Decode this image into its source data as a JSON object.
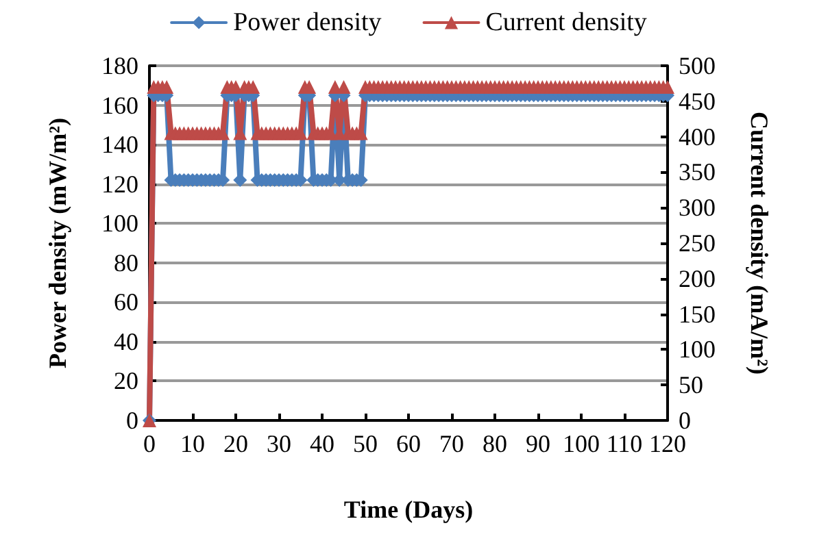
{
  "chart_data": {
    "type": "line",
    "xlabel": "Time (Days)",
    "ylabel": "Power density (mW/m²)",
    "y2label": "Current density (mA/m²)",
    "x": [
      0,
      1,
      2,
      3,
      4,
      5,
      6,
      7,
      8,
      9,
      10,
      11,
      12,
      13,
      14,
      15,
      16,
      17,
      18,
      19,
      20,
      21,
      22,
      23,
      24,
      25,
      26,
      27,
      28,
      29,
      30,
      31,
      32,
      33,
      34,
      35,
      36,
      37,
      38,
      39,
      40,
      41,
      42,
      43,
      44,
      45,
      46,
      47,
      48,
      49,
      50,
      51,
      52,
      53,
      54,
      55,
      56,
      57,
      58,
      59,
      60,
      61,
      62,
      63,
      64,
      65,
      66,
      67,
      68,
      69,
      70,
      71,
      72,
      73,
      74,
      75,
      76,
      77,
      78,
      79,
      80,
      81,
      82,
      83,
      84,
      85,
      86,
      87,
      88,
      89,
      90,
      91,
      92,
      93,
      94,
      95,
      96,
      97,
      98,
      99,
      100,
      101,
      102,
      103,
      104,
      105,
      106,
      107,
      108,
      109,
      110,
      111,
      112,
      113,
      114,
      115,
      116,
      117,
      118,
      119,
      120
    ],
    "series": [
      {
        "name": "Power density",
        "color": "#4a7ebb",
        "marker": "diamond",
        "values": [
          0,
          165,
          165,
          165,
          165,
          122,
          122,
          122,
          122,
          122,
          122,
          122,
          122,
          122,
          122,
          122,
          122,
          122,
          165,
          165,
          165,
          122,
          165,
          165,
          165,
          122,
          122,
          122,
          122,
          122,
          122,
          122,
          122,
          122,
          122,
          122,
          165,
          165,
          122,
          122,
          122,
          122,
          122,
          165,
          122,
          165,
          122,
          122,
          122,
          122,
          165,
          165,
          165,
          165,
          165,
          165,
          165,
          165,
          165,
          165,
          165,
          165,
          165,
          165,
          165,
          165,
          165,
          165,
          165,
          165,
          165,
          165,
          165,
          165,
          165,
          165,
          165,
          165,
          165,
          165,
          165,
          165,
          165,
          165,
          165,
          165,
          165,
          165,
          165,
          165,
          165,
          165,
          165,
          165,
          165,
          165,
          165,
          165,
          165,
          165,
          165,
          165,
          165,
          165,
          165,
          165,
          165,
          165,
          165,
          165,
          165,
          165,
          165,
          165,
          165,
          165,
          165,
          165,
          165,
          165,
          165
        ]
      },
      {
        "name": "Current density",
        "color": "#be4b48",
        "marker": "triangle",
        "axis": "y2",
        "values": [
          0,
          470,
          470,
          470,
          470,
          405,
          405,
          405,
          405,
          405,
          405,
          405,
          405,
          405,
          405,
          405,
          405,
          405,
          470,
          470,
          470,
          405,
          470,
          470,
          470,
          405,
          405,
          405,
          405,
          405,
          405,
          405,
          405,
          405,
          405,
          405,
          470,
          470,
          405,
          405,
          405,
          405,
          405,
          470,
          405,
          470,
          405,
          405,
          405,
          405,
          470,
          470,
          470,
          470,
          470,
          470,
          470,
          470,
          470,
          470,
          470,
          470,
          470,
          470,
          470,
          470,
          470,
          470,
          470,
          470,
          470,
          470,
          470,
          470,
          470,
          470,
          470,
          470,
          470,
          470,
          470,
          470,
          470,
          470,
          470,
          470,
          470,
          470,
          470,
          470,
          470,
          470,
          470,
          470,
          470,
          470,
          470,
          470,
          470,
          470,
          470,
          470,
          470,
          470,
          470,
          470,
          470,
          470,
          470,
          470,
          470,
          470,
          470,
          470,
          470,
          470,
          470,
          470,
          470,
          470,
          470
        ]
      }
    ],
    "xlim": [
      0,
      120
    ],
    "xticks": [
      0,
      10,
      20,
      30,
      40,
      50,
      60,
      70,
      80,
      90,
      100,
      110,
      120
    ],
    "ylim": [
      0,
      180
    ],
    "yticks": [
      0,
      20,
      40,
      60,
      80,
      100,
      120,
      140,
      160,
      180
    ],
    "y2lim": [
      0,
      500
    ],
    "y2ticks": [
      0,
      50,
      100,
      150,
      200,
      250,
      300,
      350,
      400,
      450,
      500
    ],
    "grid": "y",
    "legend": "top"
  }
}
